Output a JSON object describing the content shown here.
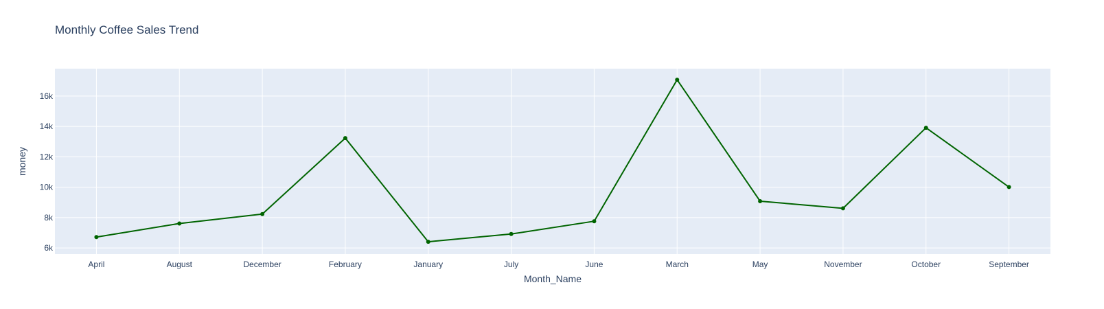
{
  "chart_data": {
    "type": "line",
    "title": "Monthly Coffee Sales Trend",
    "xlabel": "Month_Name",
    "ylabel": "money",
    "categories": [
      "April",
      "August",
      "December",
      "February",
      "January",
      "July",
      "June",
      "March",
      "May",
      "November",
      "October",
      "September"
    ],
    "series": [
      {
        "values": [
          6720,
          7610,
          8230,
          13230,
          6410,
          6920,
          7760,
          17070,
          9080,
          8610,
          13910,
          10010
        ]
      }
    ],
    "ylim": [
      5600,
      17800
    ],
    "yticks": [
      6000,
      8000,
      10000,
      12000,
      14000,
      16000
    ],
    "ytick_labels": [
      "6k",
      "8k",
      "10k",
      "12k",
      "14k",
      "16k"
    ],
    "grid": true,
    "legend": "none",
    "colors": {
      "line": "#006400",
      "plot_background": "#e5ecf6",
      "grid": "#ffffff",
      "text": "#2a3f5f"
    }
  }
}
